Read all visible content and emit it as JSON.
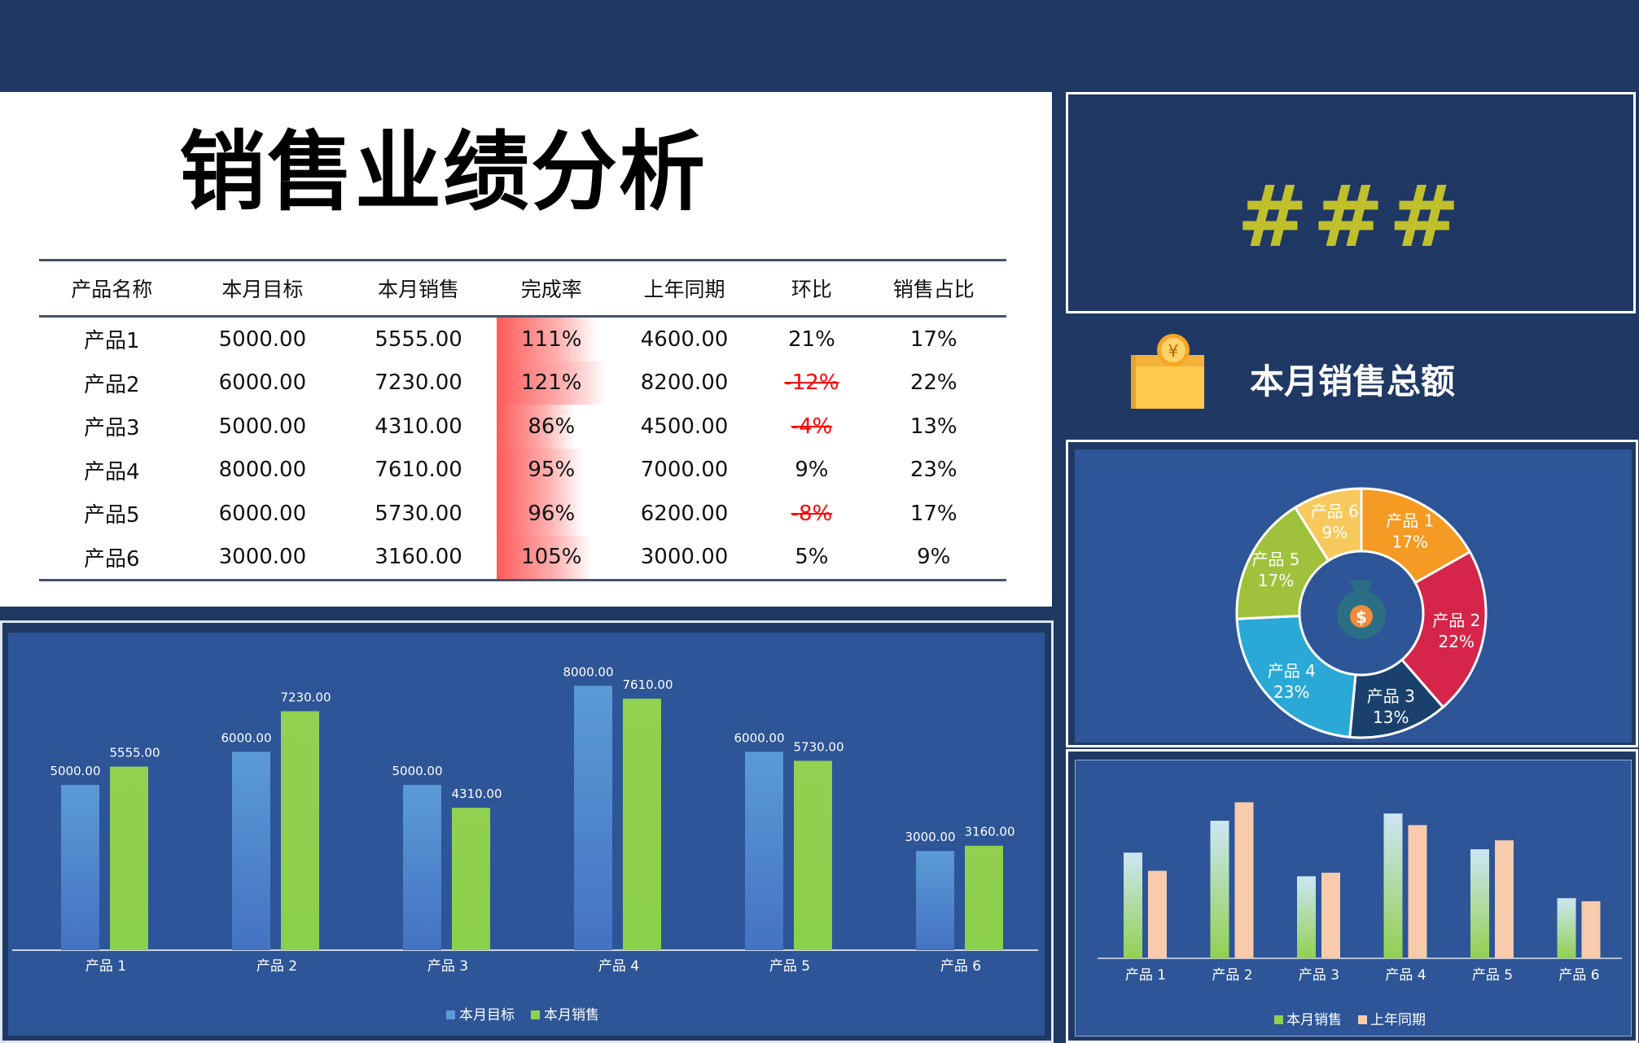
{
  "header": {
    "title": "销售业绩分析"
  },
  "table": {
    "columns": [
      "产品名称",
      "本月目标",
      "本月销售",
      "完成率",
      "上年同期",
      "环比",
      "销售占比"
    ],
    "rows": [
      [
        "产品1",
        "5000.00",
        "5555.00",
        "111%",
        "4600.00",
        "21%",
        "17%"
      ],
      [
        "产品2",
        "6000.00",
        "7230.00",
        "121%",
        "8200.00",
        "-12%",
        "22%"
      ],
      [
        "产品3",
        "5000.00",
        "4310.00",
        "86%",
        "4500.00",
        "-4%",
        "13%"
      ],
      [
        "产品4",
        "8000.00",
        "7610.00",
        "95%",
        "7000.00",
        "9%",
        "23%"
      ],
      [
        "产品5",
        "6000.00",
        "5730.00",
        "96%",
        "6200.00",
        "-8%",
        "17%"
      ],
      [
        "产品6",
        "3000.00",
        "3160.00",
        "105%",
        "3000.00",
        "5%",
        "9%"
      ]
    ],
    "completion_rate": [
      1.11,
      1.21,
      0.86,
      0.95,
      0.96,
      1.05
    ]
  },
  "summary": {
    "value": "###",
    "label": "本月销售总额",
    "icon": "money-box-icon",
    "value_color": "#c0c02c"
  },
  "colors": {
    "target": "#5b9bd5",
    "sales": "#92d050",
    "last_year": "#f8cbad",
    "panel": "#2d5597",
    "background": "#203864"
  },
  "chart_data": [
    {
      "type": "bar",
      "categories": [
        "产品 1",
        "产品 2",
        "产品 3",
        "产品 4",
        "产品 5",
        "产品 6"
      ],
      "series": [
        {
          "name": "本月目标",
          "values": [
            5000,
            6000,
            5000,
            8000,
            6000,
            3000
          ],
          "labels": [
            "5000.00",
            "6000.00",
            "5000.00",
            "8000.00",
            "6000.00",
            "3000.00"
          ]
        },
        {
          "name": "本月销售",
          "values": [
            5555,
            7230,
            4310,
            7610,
            5730,
            3160
          ],
          "labels": [
            "5555.00",
            "7230.00",
            "4310.00",
            "7610.00",
            "5730.00",
            "3160.00"
          ]
        }
      ],
      "ylim": [
        0,
        8500
      ],
      "legend": "bottom"
    },
    {
      "type": "pie",
      "donut": true,
      "center_icon": "money-bag-icon",
      "slices": [
        {
          "label": "产品 1",
          "value": 17,
          "text": "17%",
          "color": "#f59a23"
        },
        {
          "label": "产品 2",
          "value": 22,
          "text": "22%",
          "color": "#d6254a"
        },
        {
          "label": "产品 3",
          "value": 13,
          "text": "13%",
          "color": "#1a416e"
        },
        {
          "label": "产品 4",
          "value": 23,
          "text": "23%",
          "color": "#2aa9d6"
        },
        {
          "label": "产品 5",
          "value": 17,
          "text": "17%",
          "color": "#9fc13b"
        },
        {
          "label": "产品 6",
          "value": 9,
          "text": "9%",
          "color": "#f7c95c"
        }
      ]
    },
    {
      "type": "bar",
      "categories": [
        "产品 1",
        "产品 2",
        "产品 3",
        "产品 4",
        "产品 5",
        "产品 6"
      ],
      "series": [
        {
          "name": "本月销售",
          "values": [
            5555,
            7230,
            4310,
            7610,
            5730,
            3160
          ]
        },
        {
          "name": "上年同期",
          "values": [
            4600,
            8200,
            4500,
            7000,
            6200,
            3000
          ]
        }
      ],
      "ylim": [
        0,
        8600
      ],
      "legend": "bottom"
    }
  ]
}
